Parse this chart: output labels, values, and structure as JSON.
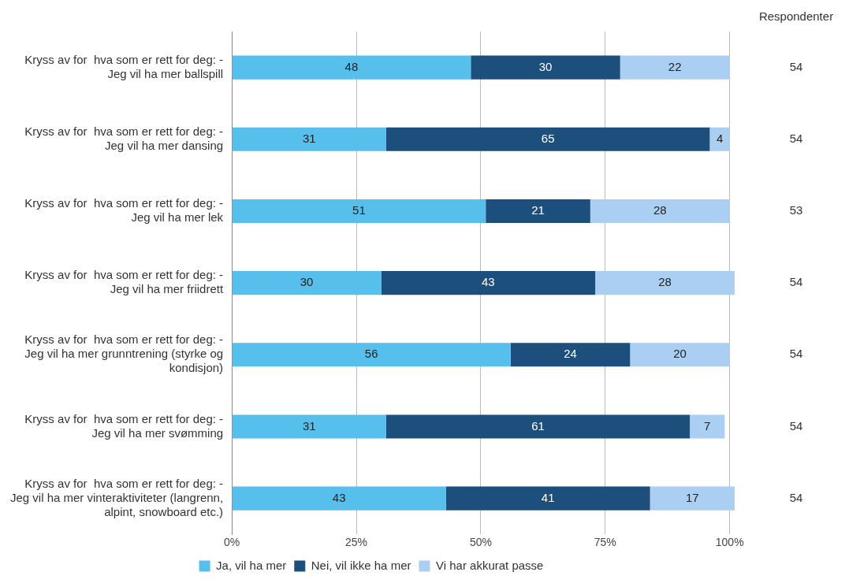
{
  "chart_data": {
    "type": "bar",
    "orientation": "horizontal",
    "stacked": true,
    "categories": [
      "Kryss av for  hva som er rett for deg: - Jeg vil ha mer ballspill",
      "Kryss av for  hva som er rett for deg: - Jeg vil ha mer dansing",
      "Kryss av for  hva som er rett for deg: - Jeg vil ha mer lek",
      "Kryss av for  hva som er rett for deg: - Jeg vil ha mer friidrett",
      "Kryss av for  hva som er rett for deg: - Jeg vil ha mer grunntrening (styrke og kondisjon)",
      "Kryss av for  hva som er rett for deg: - Jeg vil ha mer svømming",
      "Kryss av for  hva som er rett for deg: - Jeg vil ha mer vinteraktiviteter (langrenn, alpint, snowboard etc.)"
    ],
    "series": [
      {
        "name": "Ja, vil ha mer",
        "color": "#56bfeb",
        "values": [
          48,
          31,
          51,
          30,
          56,
          31,
          43
        ]
      },
      {
        "name": "Nei, vil ikke ha mer",
        "color": "#1d4f7c",
        "values": [
          30,
          65,
          21,
          43,
          24,
          61,
          41
        ]
      },
      {
        "name": "Vi har akkurat passe",
        "color": "#aacff2",
        "values": [
          22,
          4,
          28,
          28,
          20,
          7,
          17
        ]
      }
    ],
    "data_labels": true,
    "xlim": [
      0,
      101
    ],
    "xticks": [
      {
        "value": 0,
        "label": "0%"
      },
      {
        "value": 25,
        "label": "25%"
      },
      {
        "value": 50,
        "label": "50%"
      },
      {
        "value": 75,
        "label": "75%"
      },
      {
        "value": 100,
        "label": "100%"
      }
    ],
    "grid": "x",
    "legend": "bottom",
    "annotations": [
      "Respondenter",
      "54",
      "54",
      "53",
      "54",
      "54",
      "54",
      "54"
    ]
  }
}
